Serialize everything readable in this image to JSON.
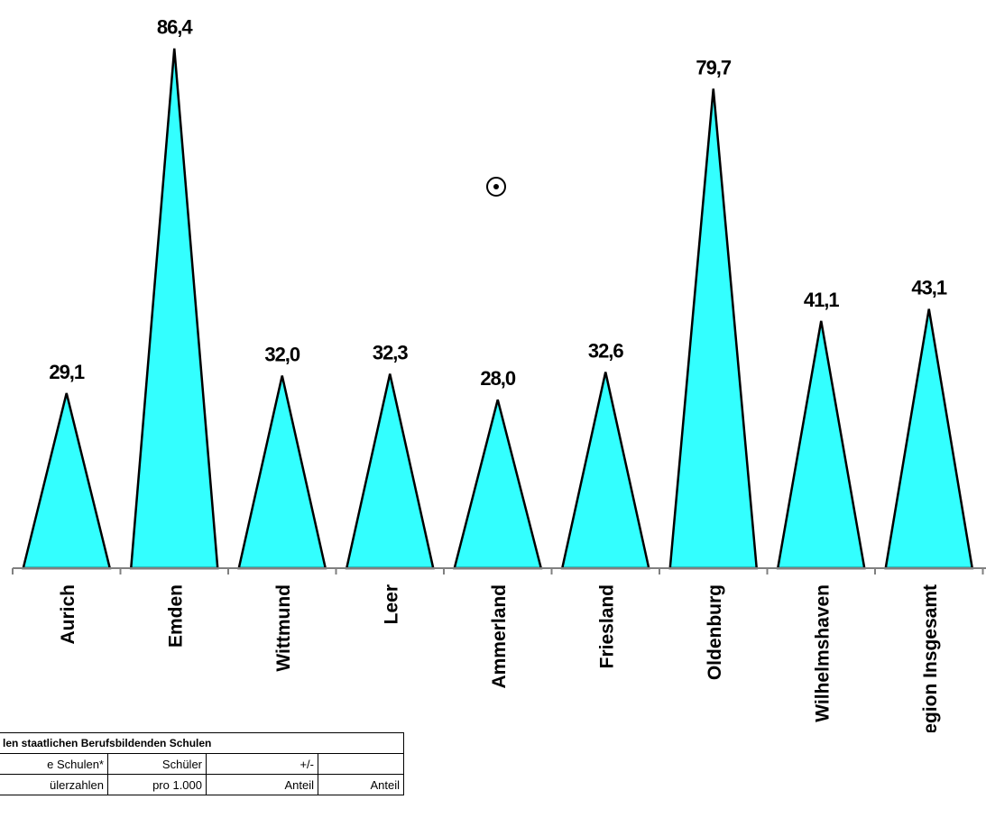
{
  "chart_data": {
    "type": "bar",
    "categories": [
      "Aurich",
      "Emden",
      "Wittmund",
      "Leer",
      "Ammerland",
      "Friesland",
      "Oldenburg",
      "Wilhelmshaven",
      "Region Insgesamt"
    ],
    "values": [
      29.1,
      86.4,
      32.0,
      32.3,
      28.0,
      32.6,
      79.7,
      41.1,
      43.1
    ],
    "value_labels": [
      "29,1",
      "86,4",
      "32,0",
      "32,3",
      "28,0",
      "32,6",
      "79,7",
      "41,1",
      "43,1"
    ],
    "mark_shape": "triangle",
    "fill_color": "#33ffff",
    "stroke_color": "#000000",
    "title": "",
    "xlabel": "",
    "ylabel": "",
    "grid": false
  },
  "table_fragment": {
    "title": "len staatlichen Berufsbildenden Schulen",
    "row1": [
      "e Schulen*",
      "Schüler",
      "+/-",
      ""
    ],
    "row2": [
      "ülerzahlen",
      "pro 1.000",
      "Anteil",
      "Anteil"
    ]
  }
}
